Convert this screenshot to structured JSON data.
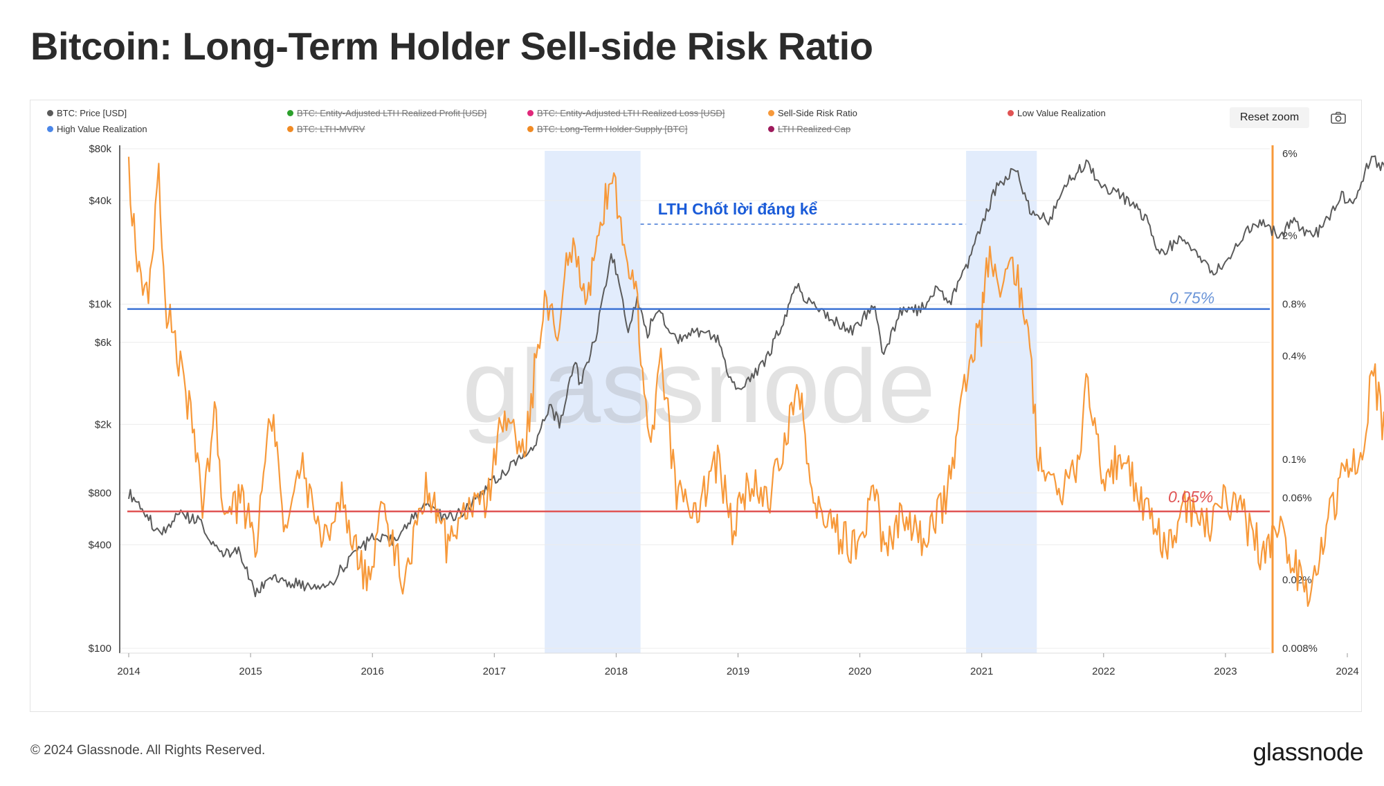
{
  "title": "Bitcoin: Long-Term Holder Sell-side Risk Ratio",
  "toolbar": {
    "reset_zoom": "Reset zoom",
    "camera_icon": "camera-icon"
  },
  "legend": [
    {
      "label": "BTC: Price [USD]",
      "color": "#5a5a5a",
      "hidden": false
    },
    {
      "label": "BTC: Entity-Adjusted LTH Realized Profit [USD]",
      "color": "#2ca02c",
      "hidden": true
    },
    {
      "label": "BTC: Entity-Adjusted LTH Realized Loss [USD]",
      "color": "#e0287a",
      "hidden": true
    },
    {
      "label": "Sell-Side Risk Ratio",
      "color": "#f7993a",
      "hidden": false
    },
    {
      "label": "Low Value Realization",
      "color": "#e05353",
      "hidden": false
    },
    {
      "label": "High Value Realization",
      "color": "#4a86e8",
      "hidden": false
    },
    {
      "label": "BTC: LTH-MVRV",
      "color": "#f08a24",
      "hidden": true
    },
    {
      "label": "BTC: Long-Term Holder Supply [BTC]",
      "color": "#f08a24",
      "hidden": true
    },
    {
      "label": "LTH Realized Cap",
      "color": "#9e1a5c",
      "hidden": true
    }
  ],
  "annotations": {
    "profit_taking": "LTH Chốt lời đáng kể",
    "high_line_label": "0.75%",
    "low_line_label": "0.05%"
  },
  "footer": {
    "copyright": "© 2024 Glassnode. All Rights Reserved.",
    "logo": "glassnode"
  },
  "watermark": "glassnode",
  "chart_data": {
    "type": "line",
    "x_axis": {
      "ticks": [
        "2014",
        "2015",
        "2016",
        "2017",
        "2018",
        "2019",
        "2020",
        "2021",
        "2022",
        "2023",
        "2024"
      ],
      "range": [
        "2014-01-01",
        "2024-06-01"
      ]
    },
    "y_left": {
      "scale": "log",
      "range": [
        100,
        100000
      ],
      "tick_values": [
        100,
        400,
        800,
        2000,
        6000,
        10000,
        40000,
        80000
      ],
      "tick_labels": [
        "$100",
        "$400",
        "$800",
        "$2k",
        "$6k",
        "$10k",
        "$40k",
        "$80k"
      ]
    },
    "y_right": {
      "scale": "log",
      "range": [
        0.008,
        7
      ],
      "tick_values": [
        0.008,
        0.02,
        0.06,
        0.1,
        0.4,
        0.8,
        2,
        6
      ],
      "tick_labels": [
        "0.008%",
        "0.02%",
        "0.06%",
        "0.1%",
        "0.4%",
        "0.8%",
        "2%",
        "6%"
      ]
    },
    "highlight_periods": [
      [
        "2017-06-01",
        "2018-03-15"
      ],
      [
        "2020-11-15",
        "2021-06-15"
      ]
    ],
    "thresholds": [
      {
        "name": "High Value Realization",
        "value": 0.75,
        "axis": "right",
        "color": "#3d73d4"
      },
      {
        "name": "Low Value Realization",
        "value": 0.05,
        "axis": "right",
        "color": "#e05353"
      }
    ],
    "series": [
      {
        "name": "BTC: Price [USD]",
        "axis": "left",
        "color": "#5a5a5a",
        "points": [
          [
            "2014-01-01",
            800
          ],
          [
            "2014-02-15",
            650
          ],
          [
            "2014-04-01",
            450
          ],
          [
            "2014-06-01",
            600
          ],
          [
            "2014-08-01",
            550
          ],
          [
            "2014-10-01",
            350
          ],
          [
            "2014-12-01",
            360
          ],
          [
            "2015-01-15",
            200
          ],
          [
            "2015-03-01",
            270
          ],
          [
            "2015-06-01",
            230
          ],
          [
            "2015-09-01",
            240
          ],
          [
            "2015-11-01",
            350
          ],
          [
            "2015-12-31",
            430
          ],
          [
            "2016-03-01",
            420
          ],
          [
            "2016-06-15",
            700
          ],
          [
            "2016-08-01",
            580
          ],
          [
            "2016-10-01",
            610
          ],
          [
            "2016-12-31",
            960
          ],
          [
            "2017-03-01",
            1200
          ],
          [
            "2017-05-01",
            1500
          ],
          [
            "2017-06-15",
            2600
          ],
          [
            "2017-07-15",
            2000
          ],
          [
            "2017-09-01",
            4700
          ],
          [
            "2017-09-15",
            3300
          ],
          [
            "2017-11-01",
            6500
          ],
          [
            "2017-12-17",
            19000
          ],
          [
            "2018-01-10",
            14000
          ],
          [
            "2018-02-06",
            7000
          ],
          [
            "2018-03-05",
            11000
          ],
          [
            "2018-04-05",
            6800
          ],
          [
            "2018-05-05",
            9500
          ],
          [
            "2018-07-01",
            6300
          ],
          [
            "2018-09-01",
            7000
          ],
          [
            "2018-11-01",
            6400
          ],
          [
            "2018-12-15",
            3300
          ],
          [
            "2019-02-01",
            3500
          ],
          [
            "2019-04-01",
            5000
          ],
          [
            "2019-06-26",
            12500
          ],
          [
            "2019-08-01",
            10500
          ],
          [
            "2019-10-01",
            8300
          ],
          [
            "2019-12-15",
            7100
          ],
          [
            "2020-02-15",
            10200
          ],
          [
            "2020-03-13",
            4900
          ],
          [
            "2020-05-01",
            9000
          ],
          [
            "2020-07-01",
            9200
          ],
          [
            "2020-08-15",
            12000
          ],
          [
            "2020-10-01",
            10700
          ],
          [
            "2020-11-15",
            16000
          ],
          [
            "2020-12-31",
            29000
          ],
          [
            "2021-02-15",
            48000
          ],
          [
            "2021-04-14",
            63000
          ],
          [
            "2021-05-20",
            37000
          ],
          [
            "2021-07-20",
            30000
          ],
          [
            "2021-09-01",
            48000
          ],
          [
            "2021-11-10",
            67000
          ],
          [
            "2021-12-31",
            47000
          ],
          [
            "2022-03-01",
            42000
          ],
          [
            "2022-05-10",
            31000
          ],
          [
            "2022-06-18",
            19000
          ],
          [
            "2022-08-15",
            24000
          ],
          [
            "2022-10-01",
            19500
          ],
          [
            "2022-11-21",
            16000
          ],
          [
            "2022-12-31",
            16500
          ],
          [
            "2023-02-01",
            23000
          ],
          [
            "2023-04-14",
            30000
          ],
          [
            "2023-06-15",
            25000
          ],
          [
            "2023-07-15",
            30500
          ],
          [
            "2023-09-11",
            25000
          ],
          [
            "2023-10-15",
            27000
          ],
          [
            "2023-12-15",
            42000
          ],
          [
            "2024-01-23",
            39500
          ],
          [
            "2024-03-14",
            73000
          ],
          [
            "2024-05-01",
            58000
          ],
          [
            "2024-05-25",
            69000
          ]
        ]
      },
      {
        "name": "Sell-Side Risk Ratio",
        "axis": "right",
        "color": "#f7993a",
        "points": [
          [
            "2014-01-01",
            4.5
          ],
          [
            "2014-02-01",
            1.2
          ],
          [
            "2014-03-01",
            0.9
          ],
          [
            "2014-04-01",
            4.0
          ],
          [
            "2014-04-20",
            0.8
          ],
          [
            "2014-05-20",
            0.5
          ],
          [
            "2014-07-01",
            0.2
          ],
          [
            "2014-08-15",
            0.05
          ],
          [
            "2014-09-15",
            0.25
          ],
          [
            "2014-10-15",
            0.04
          ],
          [
            "2014-12-01",
            0.06
          ],
          [
            "2015-01-20",
            0.03
          ],
          [
            "2015-03-01",
            0.2
          ],
          [
            "2015-04-15",
            0.04
          ],
          [
            "2015-06-01",
            0.1
          ],
          [
            "2015-08-01",
            0.03
          ],
          [
            "2015-10-01",
            0.06
          ],
          [
            "2015-12-15",
            0.02
          ],
          [
            "2016-02-01",
            0.05
          ],
          [
            "2016-04-01",
            0.02
          ],
          [
            "2016-06-15",
            0.07
          ],
          [
            "2016-08-15",
            0.03
          ],
          [
            "2016-10-01",
            0.05
          ],
          [
            "2016-12-15",
            0.06
          ],
          [
            "2017-02-01",
            0.2
          ],
          [
            "2017-04-01",
            0.1
          ],
          [
            "2017-06-01",
            1.0
          ],
          [
            "2017-07-15",
            0.5
          ],
          [
            "2017-08-15",
            2.0
          ],
          [
            "2017-10-01",
            0.8
          ],
          [
            "2017-11-15",
            2.5
          ],
          [
            "2017-12-20",
            5.0
          ],
          [
            "2018-01-20",
            2.0
          ],
          [
            "2018-03-01",
            1.0
          ],
          [
            "2018-04-15",
            0.1
          ],
          [
            "2018-05-15",
            0.4
          ],
          [
            "2018-07-01",
            0.06
          ],
          [
            "2018-09-01",
            0.05
          ],
          [
            "2018-11-01",
            0.1
          ],
          [
            "2018-12-15",
            0.04
          ],
          [
            "2019-02-01",
            0.07
          ],
          [
            "2019-04-01",
            0.06
          ],
          [
            "2019-05-15",
            0.1
          ],
          [
            "2019-06-26",
            0.3
          ],
          [
            "2019-08-15",
            0.06
          ],
          [
            "2019-10-15",
            0.04
          ],
          [
            "2019-12-15",
            0.03
          ],
          [
            "2020-02-15",
            0.06
          ],
          [
            "2020-03-15",
            0.03
          ],
          [
            "2020-05-15",
            0.05
          ],
          [
            "2020-07-15",
            0.03
          ],
          [
            "2020-09-15",
            0.06
          ],
          [
            "2020-11-15",
            0.3
          ],
          [
            "2020-12-31",
            0.6
          ],
          [
            "2021-01-15",
            1.5
          ],
          [
            "2021-02-20",
            1.0
          ],
          [
            "2021-04-14",
            1.2
          ],
          [
            "2021-05-15",
            0.7
          ],
          [
            "2021-06-20",
            0.1
          ],
          [
            "2021-08-15",
            0.06
          ],
          [
            "2021-10-15",
            0.1
          ],
          [
            "2021-11-15",
            0.3
          ],
          [
            "2021-12-31",
            0.08
          ],
          [
            "2022-03-01",
            0.1
          ],
          [
            "2022-05-15",
            0.05
          ],
          [
            "2022-07-01",
            0.03
          ],
          [
            "2022-09-01",
            0.05
          ],
          [
            "2022-11-21",
            0.04
          ],
          [
            "2022-12-31",
            0.06
          ],
          [
            "2023-02-15",
            0.05
          ],
          [
            "2023-04-15",
            0.03
          ],
          [
            "2023-06-15",
            0.04
          ],
          [
            "2023-08-15",
            0.02
          ],
          [
            "2023-09-15",
            0.015
          ],
          [
            "2023-10-15",
            0.03
          ],
          [
            "2023-12-15",
            0.08
          ],
          [
            "2024-02-15",
            0.1
          ],
          [
            "2024-03-14",
            0.35
          ],
          [
            "2024-04-20",
            0.15
          ],
          [
            "2024-05-25",
            0.09
          ]
        ]
      }
    ]
  }
}
